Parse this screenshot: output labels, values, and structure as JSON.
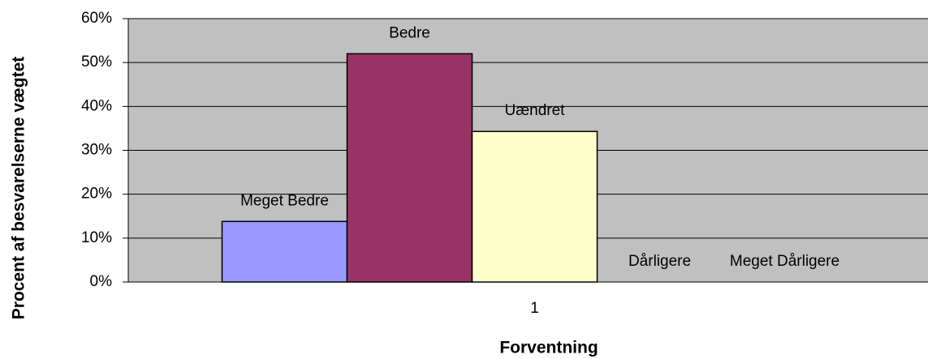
{
  "chart_data": {
    "type": "bar",
    "categories": [
      "1"
    ],
    "series": [
      {
        "name": "Meget Bedre",
        "color": "#9999ff",
        "values": [
          13.8
        ]
      },
      {
        "name": "Bedre",
        "color": "#993366",
        "values": [
          52
        ]
      },
      {
        "name": "Uændret",
        "color": "#ffffcc",
        "values": [
          34.3
        ]
      },
      {
        "name": "Dårligere",
        "color": "#ccffff",
        "values": [
          0
        ]
      },
      {
        "name": "Meget Dårligere",
        "color": "#660066",
        "values": [
          0
        ]
      }
    ],
    "ylim": [
      0,
      60
    ],
    "yticks": [
      {
        "value": 0,
        "label": "0%"
      },
      {
        "value": 10,
        "label": "10%"
      },
      {
        "value": 20,
        "label": "20%"
      },
      {
        "value": 30,
        "label": "30%"
      },
      {
        "value": 40,
        "label": "40%"
      },
      {
        "value": 50,
        "label": "50%"
      },
      {
        "value": 60,
        "label": "60%"
      }
    ],
    "grid": true,
    "x_label": "Forventning",
    "y_label": "Procent af besvarelserne vægtet"
  }
}
